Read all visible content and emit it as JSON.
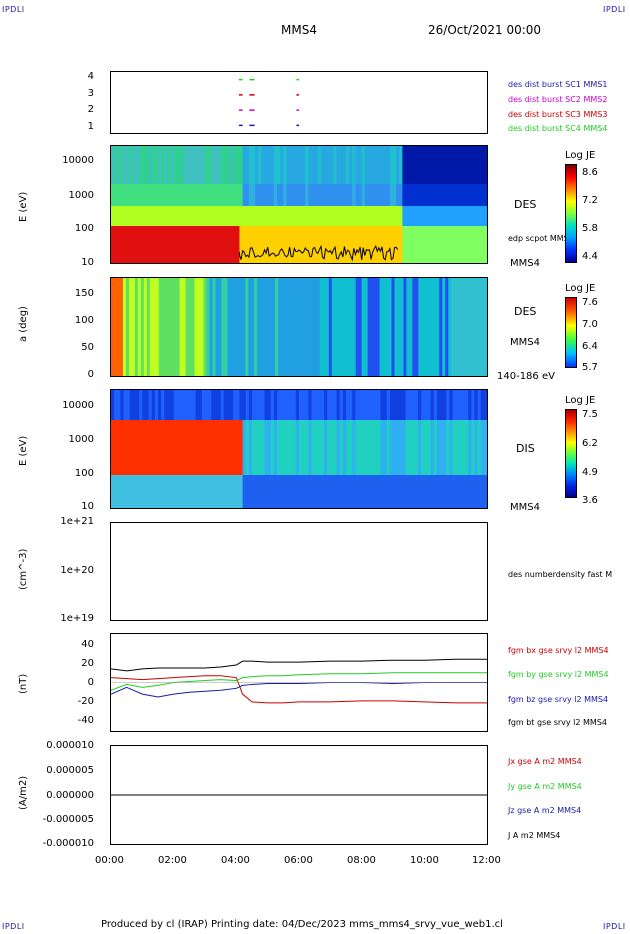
{
  "corner": {
    "tl": "IPDLI",
    "tr": "IPDLI",
    "bl": "IPDLI",
    "br": "IPDLI"
  },
  "header": {
    "spacecraft": "MMS4",
    "date": "26/Oct/2021 00:00"
  },
  "footer": {
    "text": "Produced by cl (IRAP)   Printing date: 04/Dec/2023   mms_mms4_srvy_vue_web1.cl"
  },
  "colors": {
    "blue": "#1a1aa6",
    "magenta": "#cc00cc",
    "red": "#cc0000",
    "green": "#22cc22",
    "black": "#000000"
  },
  "chart_data": [
    {
      "type": "scatter",
      "panel": "burst-availability",
      "yticks": [
        "4",
        "3",
        "2",
        "1"
      ],
      "xlim": [
        "00:00",
        "12:00"
      ],
      "series": [
        {
          "name": "des dist burst SC1 MMS1",
          "color": "#1a1aa6",
          "y": 1,
          "segments": [
            [
              "04:05",
              "04:12"
            ],
            [
              "04:25",
              "04:35"
            ],
            [
              "05:55",
              "06:00"
            ]
          ]
        },
        {
          "name": "des dist burst SC2 MMS2",
          "color": "#cc00cc",
          "y": 2,
          "segments": [
            [
              "04:05",
              "04:12"
            ],
            [
              "04:25",
              "04:35"
            ],
            [
              "05:55",
              "06:00"
            ]
          ]
        },
        {
          "name": "des dist burst SC3 MMS3",
          "color": "#cc0000",
          "y": 3,
          "segments": [
            [
              "04:05",
              "04:12"
            ],
            [
              "04:25",
              "04:35"
            ],
            [
              "05:55",
              "06:00"
            ]
          ]
        },
        {
          "name": "des dist burst SC4 MMS4",
          "color": "#22cc22",
          "y": 4,
          "segments": [
            [
              "04:05",
              "04:12"
            ],
            [
              "04:25",
              "04:35"
            ],
            [
              "05:55",
              "06:00"
            ]
          ]
        }
      ]
    },
    {
      "type": "heatmap",
      "panel": "des-energy",
      "ylabel": "E (eV)",
      "yscale": "log",
      "yticks": [
        "10000",
        "1000",
        "100",
        "10"
      ],
      "label": "DES",
      "overlay": "edp scpot MMS4",
      "probe": "MMS4",
      "colorbar": {
        "title": "Log JE",
        "ticks": [
          "8.6",
          "7.2",
          "5.8",
          "4.4"
        ]
      }
    },
    {
      "type": "heatmap",
      "panel": "des-pitch-angle",
      "ylabel": "a (deg)",
      "yticks": [
        "150",
        "100",
        "50",
        "0"
      ],
      "label": "DES",
      "probe": "MMS4",
      "range": "140-186 eV",
      "colorbar": {
        "title": "Log JE",
        "ticks": [
          "7.6",
          "7.0",
          "6.4",
          "5.7"
        ]
      }
    },
    {
      "type": "heatmap",
      "panel": "dis-energy",
      "ylabel": "E (eV)",
      "yscale": "log",
      "yticks": [
        "10000",
        "1000",
        "100",
        "10"
      ],
      "label": "DIS",
      "probe": "MMS4",
      "colorbar": {
        "title": "Log JE",
        "ticks": [
          "7.5",
          "6.2",
          "4.9",
          "3.6"
        ]
      }
    },
    {
      "type": "line",
      "panel": "density",
      "ylabel": "(cm^-3)",
      "yscale": "log",
      "yticks": [
        "1e+21",
        "1e+20",
        "1e+19"
      ],
      "series": [
        {
          "name": "des numberdensity fast M",
          "values": []
        }
      ]
    },
    {
      "type": "line",
      "panel": "magnetic-field",
      "ylabel": "(nT)",
      "ylim": [
        -50,
        50
      ],
      "yticks": [
        "40",
        "20",
        "0",
        "-20",
        "-40"
      ],
      "x_hours": [
        0,
        0.5,
        1,
        1.5,
        2,
        2.5,
        3,
        3.5,
        4,
        4.2,
        4.5,
        5,
        5.5,
        6,
        7,
        8,
        9,
        10,
        11,
        12
      ],
      "series": [
        {
          "name": "fgm bx gse srvy l2 MMS4",
          "color": "#cc0000",
          "values": [
            5,
            4,
            3,
            4,
            5,
            6,
            7,
            7,
            5,
            -12,
            -20,
            -21,
            -21,
            -20,
            -20,
            -19,
            -19,
            -20,
            -21,
            -21
          ]
        },
        {
          "name": "fgm by gse srvy l2 MMS4",
          "color": "#22cc22",
          "values": [
            -8,
            -2,
            -5,
            -3,
            0,
            1,
            2,
            3,
            2,
            5,
            6,
            7,
            7,
            8,
            9,
            9,
            10,
            10,
            10,
            10
          ]
        },
        {
          "name": "fgm bz gse srvy l2 MMS4",
          "color": "#1a1aa6",
          "values": [
            -12,
            -5,
            -12,
            -15,
            -12,
            -10,
            -9,
            -8,
            -6,
            -3,
            -2,
            -1,
            -1,
            -1,
            0,
            0,
            -1,
            0,
            0,
            0
          ]
        },
        {
          "name": "fgm bt gse srvy l2 MMS4",
          "color": "#000000",
          "values": [
            14,
            12,
            14,
            15,
            15,
            15,
            15,
            16,
            18,
            22,
            22,
            21,
            21,
            21,
            22,
            22,
            23,
            23,
            24,
            24
          ]
        }
      ]
    },
    {
      "type": "line",
      "panel": "current-density",
      "ylabel": "(A/m2)",
      "ylim": [
        -1e-05,
        1e-05
      ],
      "yticks": [
        "0.000010",
        "0.000005",
        "0.000000",
        "-0.000005",
        "-0.000010"
      ],
      "xticks": [
        "00:00",
        "02:00",
        "04:00",
        "06:00",
        "08:00",
        "10:00",
        "12:00"
      ],
      "series": [
        {
          "name": "Jx gse A m2 MMS4",
          "color": "#cc0000"
        },
        {
          "name": "Jy gse A m2 MMS4",
          "color": "#22cc22"
        },
        {
          "name": "Jz gse A m2 MMS4",
          "color": "#1a1aa6"
        },
        {
          "name": "J A m2 MMS4",
          "color": "#000000"
        }
      ]
    }
  ]
}
